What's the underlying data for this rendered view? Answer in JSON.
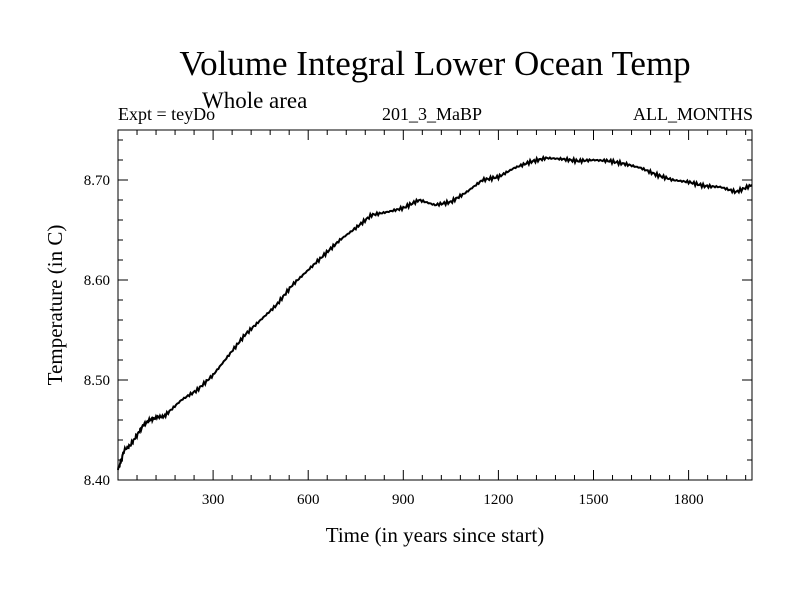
{
  "chart_data": {
    "type": "line",
    "title": "Volume Integral Lower Ocean Temp",
    "subtitle": "Whole area",
    "experiment": "Expt = teyDo",
    "run_id": "201_3_MaBP",
    "months": "ALL_MONTHS",
    "xlabel": "Time (in years since start)",
    "ylabel": "Temperature (in C)",
    "xlim": [
      0,
      2000
    ],
    "ylim": [
      8.4,
      8.75
    ],
    "xticks": [
      "300",
      "600",
      "900",
      "1200",
      "1500",
      "1800"
    ],
    "yticks": [
      "8.40",
      "8.50",
      "8.60",
      "8.70"
    ],
    "series": [
      {
        "name": "Volume Integral Lower Ocean Temp",
        "x": [
          0,
          10,
          20,
          40,
          60,
          80,
          100,
          120,
          150,
          200,
          250,
          300,
          350,
          400,
          450,
          500,
          550,
          600,
          650,
          700,
          750,
          800,
          850,
          900,
          950,
          1000,
          1050,
          1100,
          1150,
          1200,
          1250,
          1300,
          1350,
          1400,
          1450,
          1500,
          1550,
          1600,
          1650,
          1700,
          1750,
          1800,
          1850,
          1900,
          1950,
          2000
        ],
        "values": [
          8.41,
          8.42,
          8.43,
          8.435,
          8.445,
          8.455,
          8.46,
          8.462,
          8.465,
          8.48,
          8.49,
          8.505,
          8.525,
          8.545,
          8.56,
          8.575,
          8.595,
          8.61,
          8.625,
          8.64,
          8.652,
          8.665,
          8.668,
          8.672,
          8.68,
          8.675,
          8.678,
          8.688,
          8.7,
          8.703,
          8.712,
          8.718,
          8.722,
          8.721,
          8.719,
          8.72,
          8.719,
          8.716,
          8.712,
          8.705,
          8.7,
          8.698,
          8.694,
          8.693,
          8.688,
          8.695
        ]
      }
    ]
  }
}
